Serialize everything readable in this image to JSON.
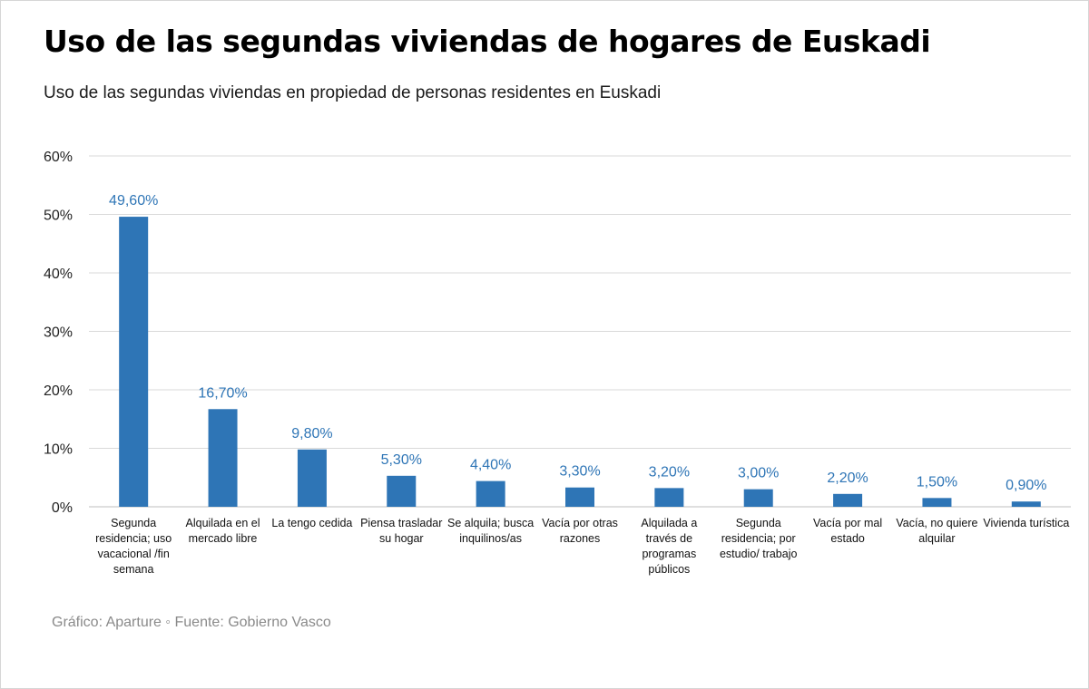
{
  "title": "Uso de las segundas viviendas de hogares de Euskadi",
  "subtitle": "Uso de las segundas viviendas en propiedad de personas residentes en Euskadi",
  "footer": "Gráfico: Aparture ◦ Fuente: Gobierno Vasco",
  "colors": {
    "bar": "#2e75b6",
    "data_label": "#2e75b6",
    "grid": "#d9d9d9",
    "axis": "#bfbfbf"
  },
  "chart_data": {
    "type": "bar",
    "categories": [
      "Segunda residencia; uso vacacional /fin semana",
      "Alquilada en el mercado libre",
      "La tengo cedida",
      "Piensa trasladar su hogar",
      "Se alquila; busca inquilinos/as",
      "Vacía por otras razones",
      "Alquilada a través de programas públicos",
      "Segunda residencia; por estudio/ trabajo",
      "Vacía por mal estado",
      "Vacía, no quiere alquilar",
      "Vivienda turística"
    ],
    "values": [
      49.6,
      16.7,
      9.8,
      5.3,
      4.4,
      3.3,
      3.2,
      3.0,
      2.2,
      1.5,
      0.9
    ],
    "data_labels": [
      "49,60%",
      "16,70%",
      "9,80%",
      "5,30%",
      "4,40%",
      "3,30%",
      "3,20%",
      "3,00%",
      "2,20%",
      "1,50%",
      "0,90%"
    ],
    "y_ticks": [
      0,
      10,
      20,
      30,
      40,
      50,
      60
    ],
    "y_tick_labels": [
      "0%",
      "10%",
      "20%",
      "30%",
      "40%",
      "50%",
      "60%"
    ],
    "ylim": [
      0,
      60
    ],
    "grid": true,
    "xlabel": "",
    "ylabel": ""
  }
}
